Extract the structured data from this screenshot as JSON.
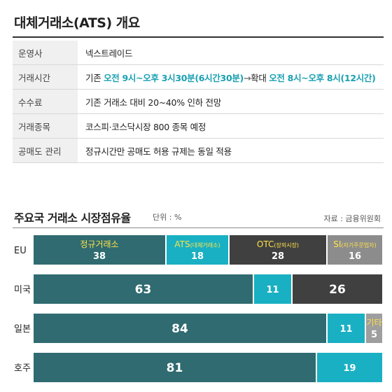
{
  "title": "대체거래소(ATS) 개요",
  "info_rows": [
    {
      "label": "운영사",
      "parts": [
        {
          "t": "넥스트레이드",
          "s": ""
        }
      ]
    },
    {
      "label": "거래시간",
      "parts": [
        {
          "t": "기존 ",
          "s": ""
        },
        {
          "t": "오전 9시~오후 3시30분(6시간30분)",
          "s": "hl"
        },
        {
          "t": "→",
          "s": "arrow"
        },
        {
          "t": "확대 ",
          "s": ""
        },
        {
          "t": "오전 8시~오후 8시(12시간)",
          "s": "hl"
        }
      ]
    },
    {
      "label": "수수료",
      "parts": [
        {
          "t": "기존 거래소 대비 20~40% 인하 전망",
          "s": ""
        }
      ]
    },
    {
      "label": "거래종목",
      "parts": [
        {
          "t": "코스피·코스닥시장 800 종목 예정",
          "s": ""
        }
      ]
    },
    {
      "label": "공매도 관리",
      "parts": [
        {
          "t": "정규시간만 공매도 허용 규제는 동일 적용",
          "s": ""
        }
      ]
    }
  ],
  "chart_header": {
    "title": "주요국 거래소 시장점유율",
    "unit": "단위 : %",
    "source": "자료 : 금융위원회"
  },
  "colors": {
    "regular": "#2f6b70",
    "ats": "#1ab0c3",
    "otc": "#404040",
    "si": "#8c8c8c",
    "other": "#9e9e9e",
    "label_yellow": "#ffe34a"
  },
  "chart_data": {
    "type": "bar",
    "orientation": "horizontal",
    "stacked": true,
    "xlim": [
      0,
      100
    ],
    "categories": [
      "EU",
      "미국",
      "일본",
      "호주"
    ],
    "series": [
      {
        "name": "정규거래소",
        "values": [
          38,
          63,
          84,
          81
        ],
        "color": "#2f6b70"
      },
      {
        "name": "ATS",
        "sub": "(대체거래소)",
        "values": [
          18,
          11,
          11,
          19
        ],
        "color": "#1ab0c3"
      },
      {
        "name": "OTC",
        "sub": "(장외시장)",
        "values": [
          28,
          26,
          null,
          null
        ],
        "color": "#404040"
      },
      {
        "name": "SI",
        "sub": "(자기주문업자)",
        "values": [
          16,
          null,
          null,
          null
        ],
        "color": "#8c8c8c"
      },
      {
        "name": "기타",
        "values": [
          null,
          null,
          5,
          null
        ],
        "color": "#9e9e9e"
      }
    ]
  }
}
